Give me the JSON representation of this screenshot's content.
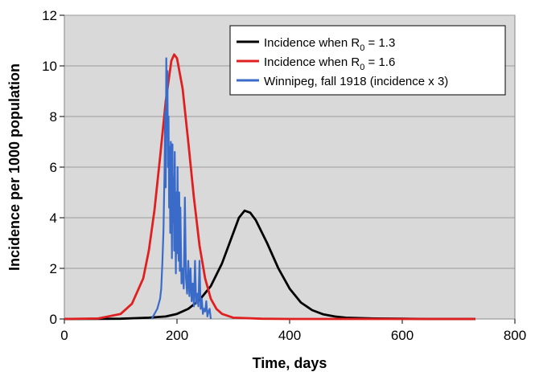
{
  "chart_data": {
    "type": "line",
    "xlabel": "Time, days",
    "ylabel": "Incidence per 1000 population",
    "xlim": [
      0,
      800
    ],
    "ylim": [
      0,
      12
    ],
    "x_ticks": [
      "0",
      "200",
      "400",
      "600",
      "800"
    ],
    "y_ticks": [
      "0",
      "2",
      "4",
      "6",
      "8",
      "10",
      "12"
    ],
    "grid": "horizontal",
    "background": "#d9d9d9",
    "legend_position": "top-right",
    "series": [
      {
        "name": "Incidence when R",
        "name_sub": "0",
        "name_suffix": " = 1.3",
        "color": "#000000",
        "x": [
          0,
          100,
          150,
          180,
          200,
          220,
          240,
          260,
          280,
          300,
          310,
          320,
          330,
          340,
          360,
          380,
          400,
          420,
          440,
          460,
          480,
          500,
          550,
          600,
          650,
          730
        ],
        "y": [
          0,
          0.01,
          0.05,
          0.1,
          0.2,
          0.4,
          0.75,
          1.3,
          2.2,
          3.4,
          4.0,
          4.28,
          4.2,
          3.9,
          3.0,
          2.0,
          1.2,
          0.65,
          0.35,
          0.18,
          0.1,
          0.05,
          0.02,
          0.01,
          0,
          0
        ]
      },
      {
        "name": "Incidence when R",
        "name_sub": "0",
        "name_suffix": " = 1.6",
        "color": "#e02020",
        "x": [
          0,
          60,
          100,
          120,
          140,
          150,
          160,
          170,
          180,
          190,
          195,
          200,
          210,
          220,
          230,
          240,
          250,
          260,
          270,
          280,
          300,
          350,
          400,
          730
        ],
        "y": [
          0,
          0.02,
          0.2,
          0.6,
          1.6,
          2.7,
          4.3,
          6.4,
          8.6,
          10.2,
          10.45,
          10.3,
          9.1,
          7.0,
          4.8,
          2.9,
          1.6,
          0.8,
          0.4,
          0.2,
          0.05,
          0.01,
          0,
          0
        ]
      },
      {
        "name": "Winnipeg, fall 1918 (incidence x 3)",
        "color": "#3a6bc9",
        "x": [
          155,
          160,
          165,
          170,
          172,
          174,
          176,
          178,
          179,
          180,
          181,
          182,
          183,
          184,
          185,
          186,
          187,
          188,
          189,
          190,
          191,
          192,
          193,
          194,
          195,
          196,
          197,
          198,
          199,
          200,
          201,
          202,
          203,
          204,
          205,
          206,
          208,
          210,
          212,
          214,
          216,
          218,
          220,
          222,
          224,
          226,
          228,
          230,
          232,
          234,
          236,
          238,
          240,
          242,
          244,
          246,
          248,
          250,
          252,
          254,
          256,
          258,
          260
        ],
        "y": [
          0,
          0.2,
          0.4,
          0.8,
          1.2,
          2.2,
          3.5,
          6.0,
          8.2,
          5.2,
          10.3,
          7.5,
          9.8,
          6.0,
          8.0,
          4.4,
          6.8,
          3.4,
          7.0,
          5.4,
          2.4,
          6.9,
          3.8,
          5.6,
          2.7,
          6.6,
          4.1,
          1.8,
          5.0,
          2.6,
          6.0,
          3.0,
          2.3,
          5.0,
          1.9,
          4.4,
          1.4,
          2.0,
          1.2,
          4.8,
          1.6,
          1.0,
          2.3,
          0.9,
          2.0,
          0.7,
          1.4,
          0.5,
          2.3,
          0.6,
          1.0,
          0.5,
          2.3,
          0.4,
          0.8,
          0.2,
          0.4,
          0.3,
          0.7,
          0.1,
          0.3,
          0.4,
          0
        ]
      }
    ]
  }
}
